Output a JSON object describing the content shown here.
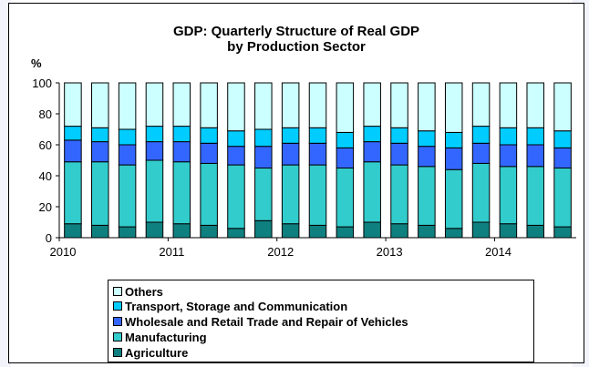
{
  "chart_data": {
    "type": "bar",
    "stacked": true,
    "title": "GDP: Quarterly Structure of Real GDP",
    "subtitle": "by Production Sector",
    "ylabel": "%",
    "ylim": [
      0,
      100
    ],
    "yticks": [
      0,
      20,
      40,
      60,
      80,
      100
    ],
    "x_tick_labels": [
      "2010",
      "2011",
      "2012",
      "2013",
      "2014"
    ],
    "categories": [
      "2010Q1",
      "2010Q2",
      "2010Q3",
      "2010Q4",
      "2011Q1",
      "2011Q2",
      "2011Q3",
      "2011Q4",
      "2012Q1",
      "2012Q2",
      "2012Q3",
      "2012Q4",
      "2013Q1",
      "2013Q2",
      "2013Q3",
      "2013Q4",
      "2014Q1",
      "2014Q2",
      "2014Q3"
    ],
    "series": [
      {
        "name": "Agriculture",
        "color": "#0f8080",
        "values": [
          9,
          8,
          7,
          10,
          9,
          8,
          6,
          11,
          9,
          8,
          7,
          10,
          9,
          8,
          6,
          10,
          9,
          8,
          7
        ]
      },
      {
        "name": "Manufacturing",
        "color": "#33cccc",
        "values": [
          40,
          41,
          40,
          40,
          40,
          40,
          41,
          34,
          38,
          39,
          38,
          39,
          38,
          38,
          38,
          38,
          37,
          38,
          38
        ]
      },
      {
        "name": "Wholesale and Retail Trade and Repair of Vehicles",
        "color": "#3366ff",
        "values": [
          14,
          13,
          13,
          12,
          13,
          13,
          12,
          14,
          14,
          14,
          13,
          13,
          14,
          13,
          14,
          13,
          14,
          14,
          13
        ]
      },
      {
        "name": "Transport, Storage and Communication",
        "color": "#00ccff",
        "values": [
          9,
          9,
          10,
          10,
          10,
          10,
          10,
          11,
          10,
          10,
          10,
          10,
          10,
          10,
          10,
          11,
          11,
          11,
          11
        ]
      },
      {
        "name": "Others",
        "color": "#ccffff",
        "values": [
          28,
          29,
          30,
          28,
          28,
          29,
          31,
          30,
          29,
          29,
          32,
          28,
          29,
          31,
          32,
          28,
          29,
          29,
          31
        ]
      }
    ],
    "legend_position": "bottom",
    "legend_order": [
      "Others",
      "Transport, Storage and Communication",
      "Wholesale and Retail Trade and Repair of Vehicles",
      "Manufacturing",
      "Agriculture"
    ],
    "grid": false
  }
}
